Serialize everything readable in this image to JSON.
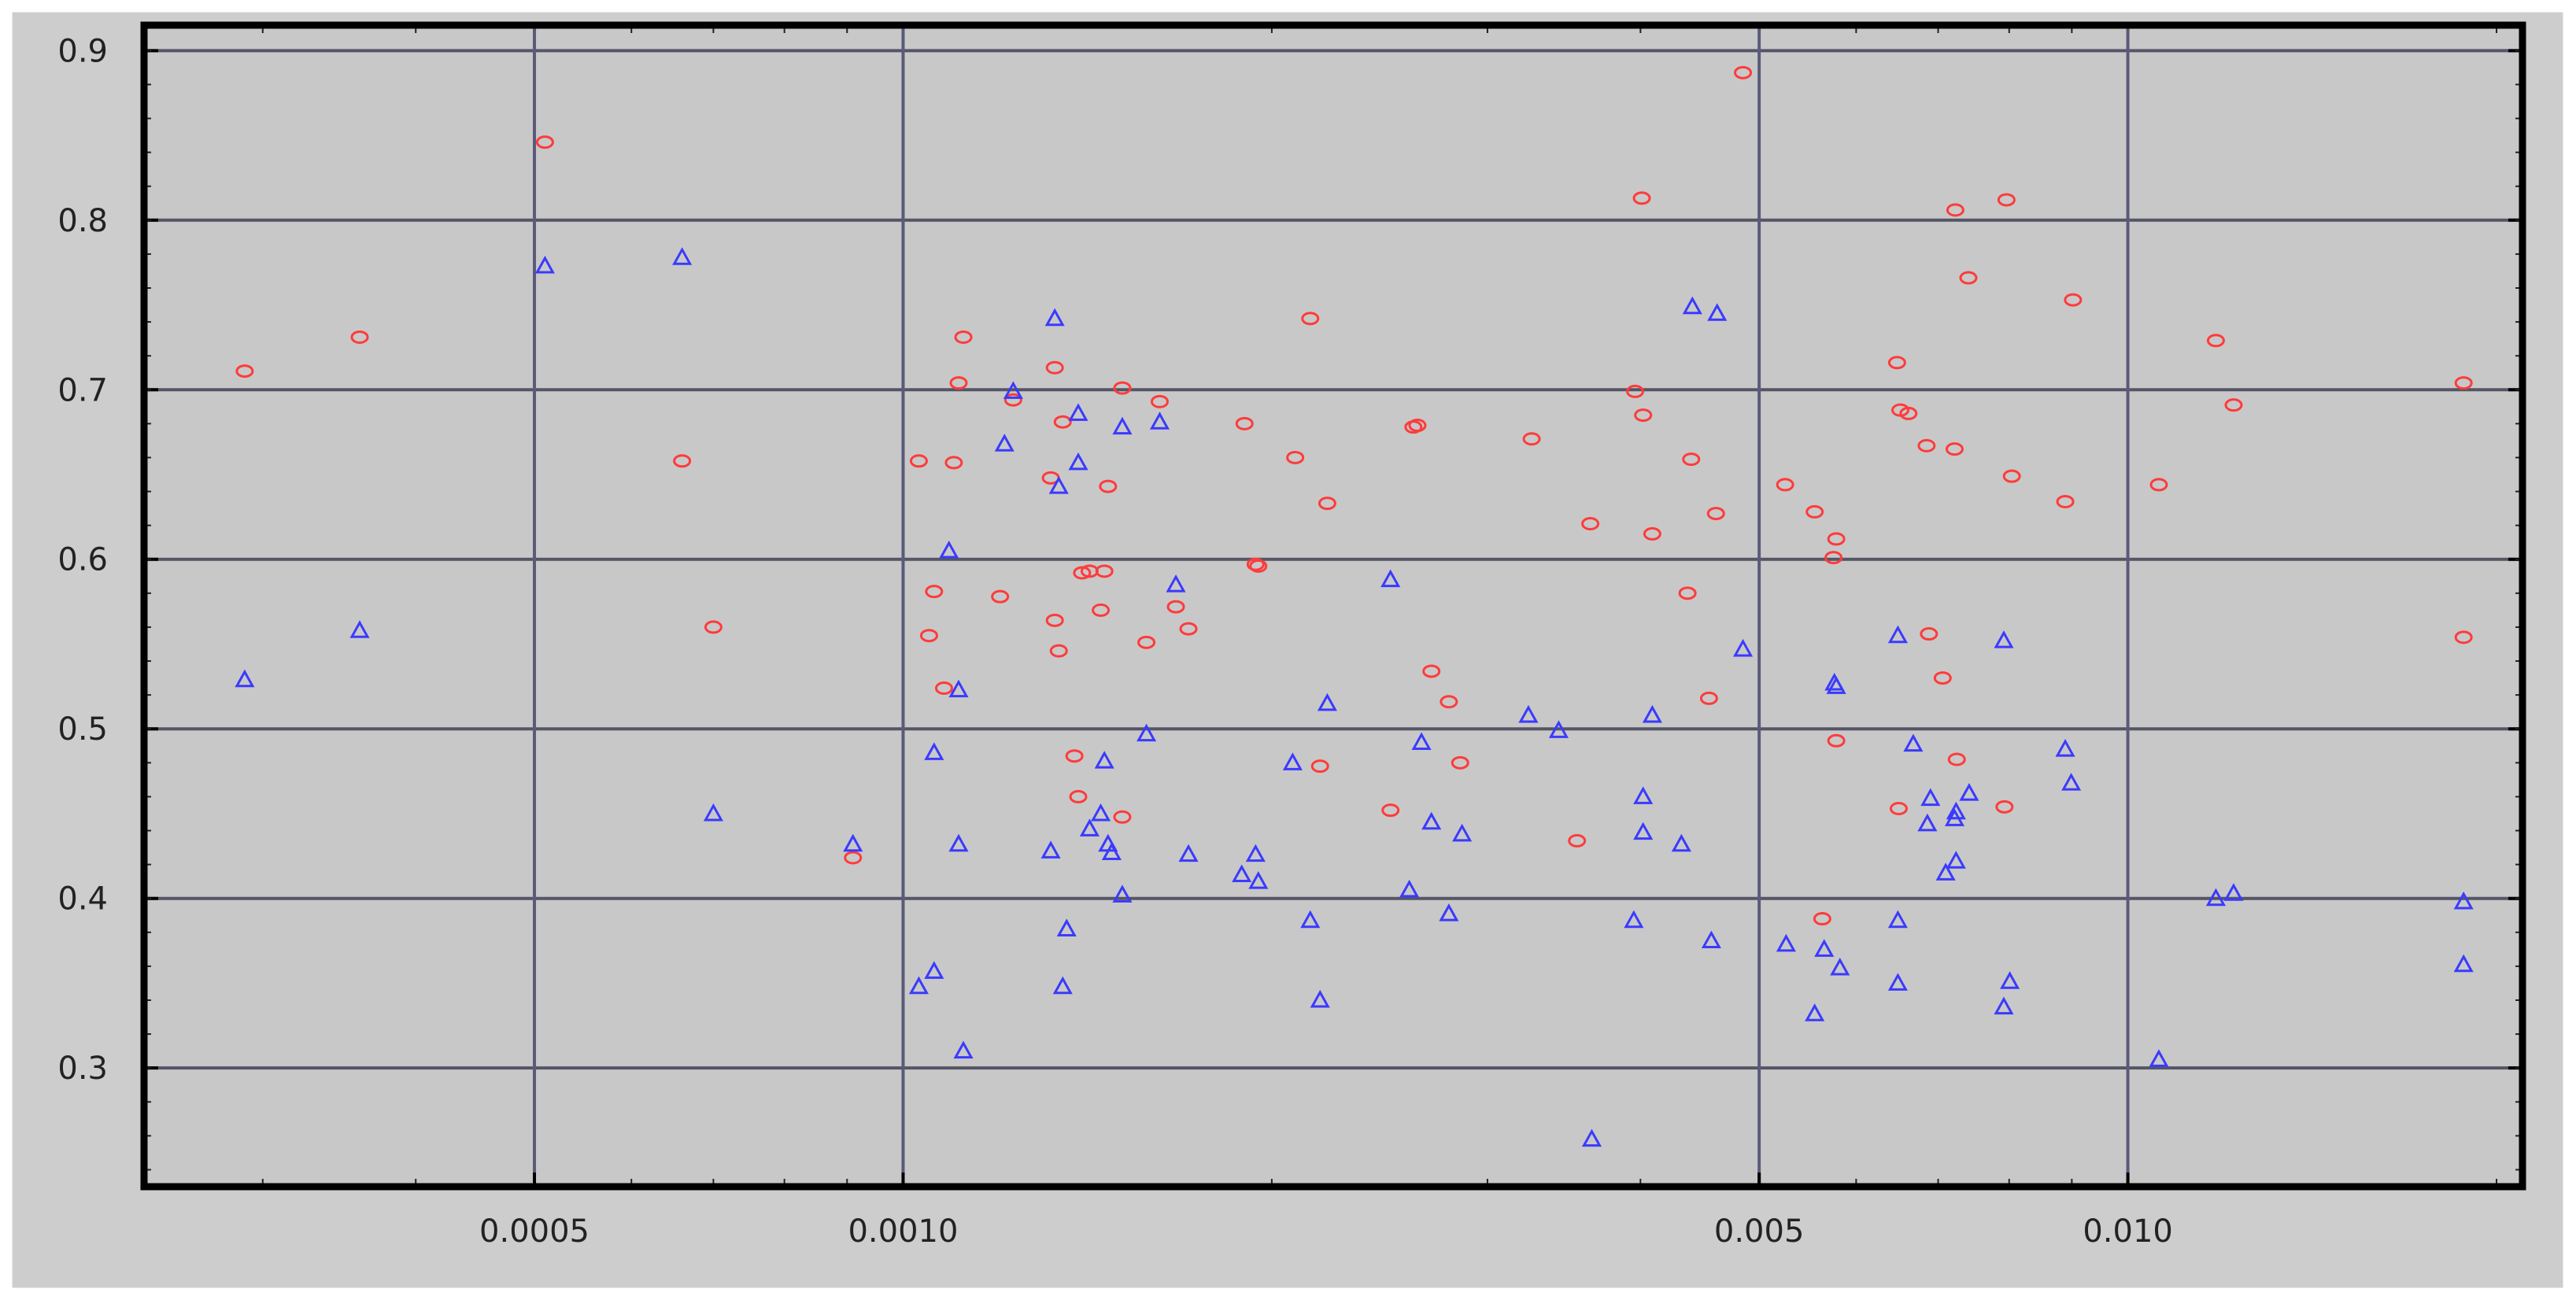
{
  "chart_data": {
    "type": "scatter",
    "title": "",
    "xlabel": "",
    "ylabel": "",
    "x_scale": "log",
    "xlim": [
      0.00024,
      0.021
    ],
    "ylim": [
      0.23,
      0.915
    ],
    "grid": true,
    "legend": "none",
    "x_ticks": [
      {
        "value": 0.0005,
        "label": "0.0005"
      },
      {
        "value": 0.001,
        "label": "0.0010"
      },
      {
        "value": 0.005,
        "label": "0.005"
      },
      {
        "value": 0.01,
        "label": "0.010"
      }
    ],
    "y_ticks": [
      {
        "value": 0.3,
        "label": "0.3"
      },
      {
        "value": 0.4,
        "label": "0.4"
      },
      {
        "value": 0.5,
        "label": "0.5"
      },
      {
        "value": 0.6,
        "label": "0.6"
      },
      {
        "value": 0.7,
        "label": "0.7"
      },
      {
        "value": 0.8,
        "label": "0.8"
      },
      {
        "value": 0.9,
        "label": "0.9"
      }
    ],
    "series": [
      {
        "marker": "circle",
        "color": "#ff3b3b",
        "points": [
          [
            0.00029,
            0.711
          ],
          [
            0.00036,
            0.731
          ],
          [
            0.00051,
            0.846
          ],
          [
            0.00066,
            0.658
          ],
          [
            0.0007,
            0.56
          ],
          [
            0.00091,
            0.424
          ],
          [
            0.00103,
            0.658
          ],
          [
            0.00105,
            0.555
          ],
          [
            0.00106,
            0.581
          ],
          [
            0.00108,
            0.524
          ],
          [
            0.0011,
            0.657
          ],
          [
            0.00111,
            0.704
          ],
          [
            0.00112,
            0.731
          ],
          [
            0.0012,
            0.578
          ],
          [
            0.00123,
            0.694
          ],
          [
            0.00132,
            0.648
          ],
          [
            0.00133,
            0.713
          ],
          [
            0.00133,
            0.564
          ],
          [
            0.00134,
            0.546
          ],
          [
            0.00135,
            0.681
          ],
          [
            0.00138,
            0.484
          ],
          [
            0.00139,
            0.46
          ],
          [
            0.0014,
            0.592
          ],
          [
            0.00142,
            0.593
          ],
          [
            0.00145,
            0.57
          ],
          [
            0.00146,
            0.593
          ],
          [
            0.00147,
            0.643
          ],
          [
            0.00151,
            0.701
          ],
          [
            0.00151,
            0.448
          ],
          [
            0.00158,
            0.551
          ],
          [
            0.00162,
            0.693
          ],
          [
            0.00167,
            0.572
          ],
          [
            0.00171,
            0.559
          ],
          [
            0.0019,
            0.68
          ],
          [
            0.00194,
            0.597
          ],
          [
            0.00195,
            0.596
          ],
          [
            0.00209,
            0.66
          ],
          [
            0.00215,
            0.742
          ],
          [
            0.00219,
            0.478
          ],
          [
            0.00222,
            0.633
          ],
          [
            0.0025,
            0.452
          ],
          [
            0.00261,
            0.678
          ],
          [
            0.00263,
            0.679
          ],
          [
            0.0027,
            0.534
          ],
          [
            0.00279,
            0.516
          ],
          [
            0.00285,
            0.48
          ],
          [
            0.00326,
            0.671
          ],
          [
            0.00364,
            0.621
          ],
          [
            0.00355,
            0.434
          ],
          [
            0.00396,
            0.699
          ],
          [
            0.00402,
            0.685
          ],
          [
            0.00401,
            0.813
          ],
          [
            0.00409,
            0.615
          ],
          [
            0.00437,
            0.58
          ],
          [
            0.0044,
            0.659
          ],
          [
            0.00455,
            0.518
          ],
          [
            0.00461,
            0.627
          ],
          [
            0.00485,
            0.887
          ],
          [
            0.00525,
            0.644
          ],
          [
            0.00555,
            0.628
          ],
          [
            0.00563,
            0.388
          ],
          [
            0.00575,
            0.601
          ],
          [
            0.00578,
            0.612
          ],
          [
            0.00578,
            0.493
          ],
          [
            0.00648,
            0.716
          ],
          [
            0.00652,
            0.688
          ],
          [
            0.00662,
            0.686
          ],
          [
            0.0065,
            0.453
          ],
          [
            0.00685,
            0.667
          ],
          [
            0.00688,
            0.556
          ],
          [
            0.00706,
            0.53
          ],
          [
            0.00723,
            0.806
          ],
          [
            0.00722,
            0.665
          ],
          [
            0.00725,
            0.482
          ],
          [
            0.00741,
            0.766
          ],
          [
            0.00796,
            0.812
          ],
          [
            0.00793,
            0.454
          ],
          [
            0.00804,
            0.649
          ],
          [
            0.00889,
            0.634
          ],
          [
            0.00902,
            0.753
          ],
          [
            0.0106,
            0.644
          ],
          [
            0.0118,
            0.729
          ],
          [
            0.0122,
            0.691
          ],
          [
            0.0188,
            0.704
          ],
          [
            0.0188,
            0.554
          ]
        ]
      },
      {
        "marker": "triangle",
        "color": "#3a3aff",
        "points": [
          [
            0.00029,
            0.529
          ],
          [
            0.00036,
            0.558
          ],
          [
            0.00051,
            0.773
          ],
          [
            0.00066,
            0.778
          ],
          [
            0.0007,
            0.45
          ],
          [
            0.00091,
            0.432
          ],
          [
            0.00103,
            0.348
          ],
          [
            0.00106,
            0.486
          ],
          [
            0.00106,
            0.357
          ],
          [
            0.00109,
            0.605
          ],
          [
            0.00111,
            0.523
          ],
          [
            0.00111,
            0.432
          ],
          [
            0.00112,
            0.31
          ],
          [
            0.00121,
            0.668
          ],
          [
            0.00123,
            0.699
          ],
          [
            0.00132,
            0.428
          ],
          [
            0.00133,
            0.742
          ],
          [
            0.00134,
            0.643
          ],
          [
            0.00135,
            0.348
          ],
          [
            0.00136,
            0.382
          ],
          [
            0.00139,
            0.657
          ],
          [
            0.00139,
            0.686
          ],
          [
            0.00142,
            0.441
          ],
          [
            0.00146,
            0.481
          ],
          [
            0.00145,
            0.45
          ],
          [
            0.00147,
            0.432
          ],
          [
            0.00148,
            0.427
          ],
          [
            0.00151,
            0.678
          ],
          [
            0.00151,
            0.402
          ],
          [
            0.00158,
            0.497
          ],
          [
            0.00162,
            0.681
          ],
          [
            0.00167,
            0.585
          ],
          [
            0.00171,
            0.426
          ],
          [
            0.00189,
            0.414
          ],
          [
            0.00194,
            0.426
          ],
          [
            0.00195,
            0.41
          ],
          [
            0.00208,
            0.48
          ],
          [
            0.00215,
            0.387
          ],
          [
            0.00219,
            0.34
          ],
          [
            0.00222,
            0.515
          ],
          [
            0.0025,
            0.588
          ],
          [
            0.00259,
            0.405
          ],
          [
            0.00265,
            0.492
          ],
          [
            0.0027,
            0.445
          ],
          [
            0.00279,
            0.391
          ],
          [
            0.00286,
            0.438
          ],
          [
            0.00324,
            0.508
          ],
          [
            0.00343,
            0.499
          ],
          [
            0.00365,
            0.258
          ],
          [
            0.00395,
            0.387
          ],
          [
            0.00402,
            0.46
          ],
          [
            0.00402,
            0.439
          ],
          [
            0.00409,
            0.508
          ],
          [
            0.00432,
            0.432
          ],
          [
            0.00441,
            0.749
          ],
          [
            0.00462,
            0.745
          ],
          [
            0.00457,
            0.375
          ],
          [
            0.00485,
            0.547
          ],
          [
            0.00526,
            0.373
          ],
          [
            0.00555,
            0.332
          ],
          [
            0.00565,
            0.37
          ],
          [
            0.00576,
            0.527
          ],
          [
            0.00578,
            0.525
          ],
          [
            0.00582,
            0.359
          ],
          [
            0.00649,
            0.555
          ],
          [
            0.00649,
            0.387
          ],
          [
            0.00649,
            0.35
          ],
          [
            0.00668,
            0.491
          ],
          [
            0.00686,
            0.444
          ],
          [
            0.0069,
            0.459
          ],
          [
            0.0071,
            0.415
          ],
          [
            0.00722,
            0.447
          ],
          [
            0.00724,
            0.451
          ],
          [
            0.00724,
            0.422
          ],
          [
            0.00742,
            0.462
          ],
          [
            0.00792,
            0.552
          ],
          [
            0.00792,
            0.336
          ],
          [
            0.00801,
            0.351
          ],
          [
            0.00889,
            0.488
          ],
          [
            0.00899,
            0.468
          ],
          [
            0.0106,
            0.305
          ],
          [
            0.0118,
            0.4
          ],
          [
            0.0122,
            0.403
          ],
          [
            0.0188,
            0.398
          ],
          [
            0.0188,
            0.361
          ]
        ]
      }
    ]
  }
}
